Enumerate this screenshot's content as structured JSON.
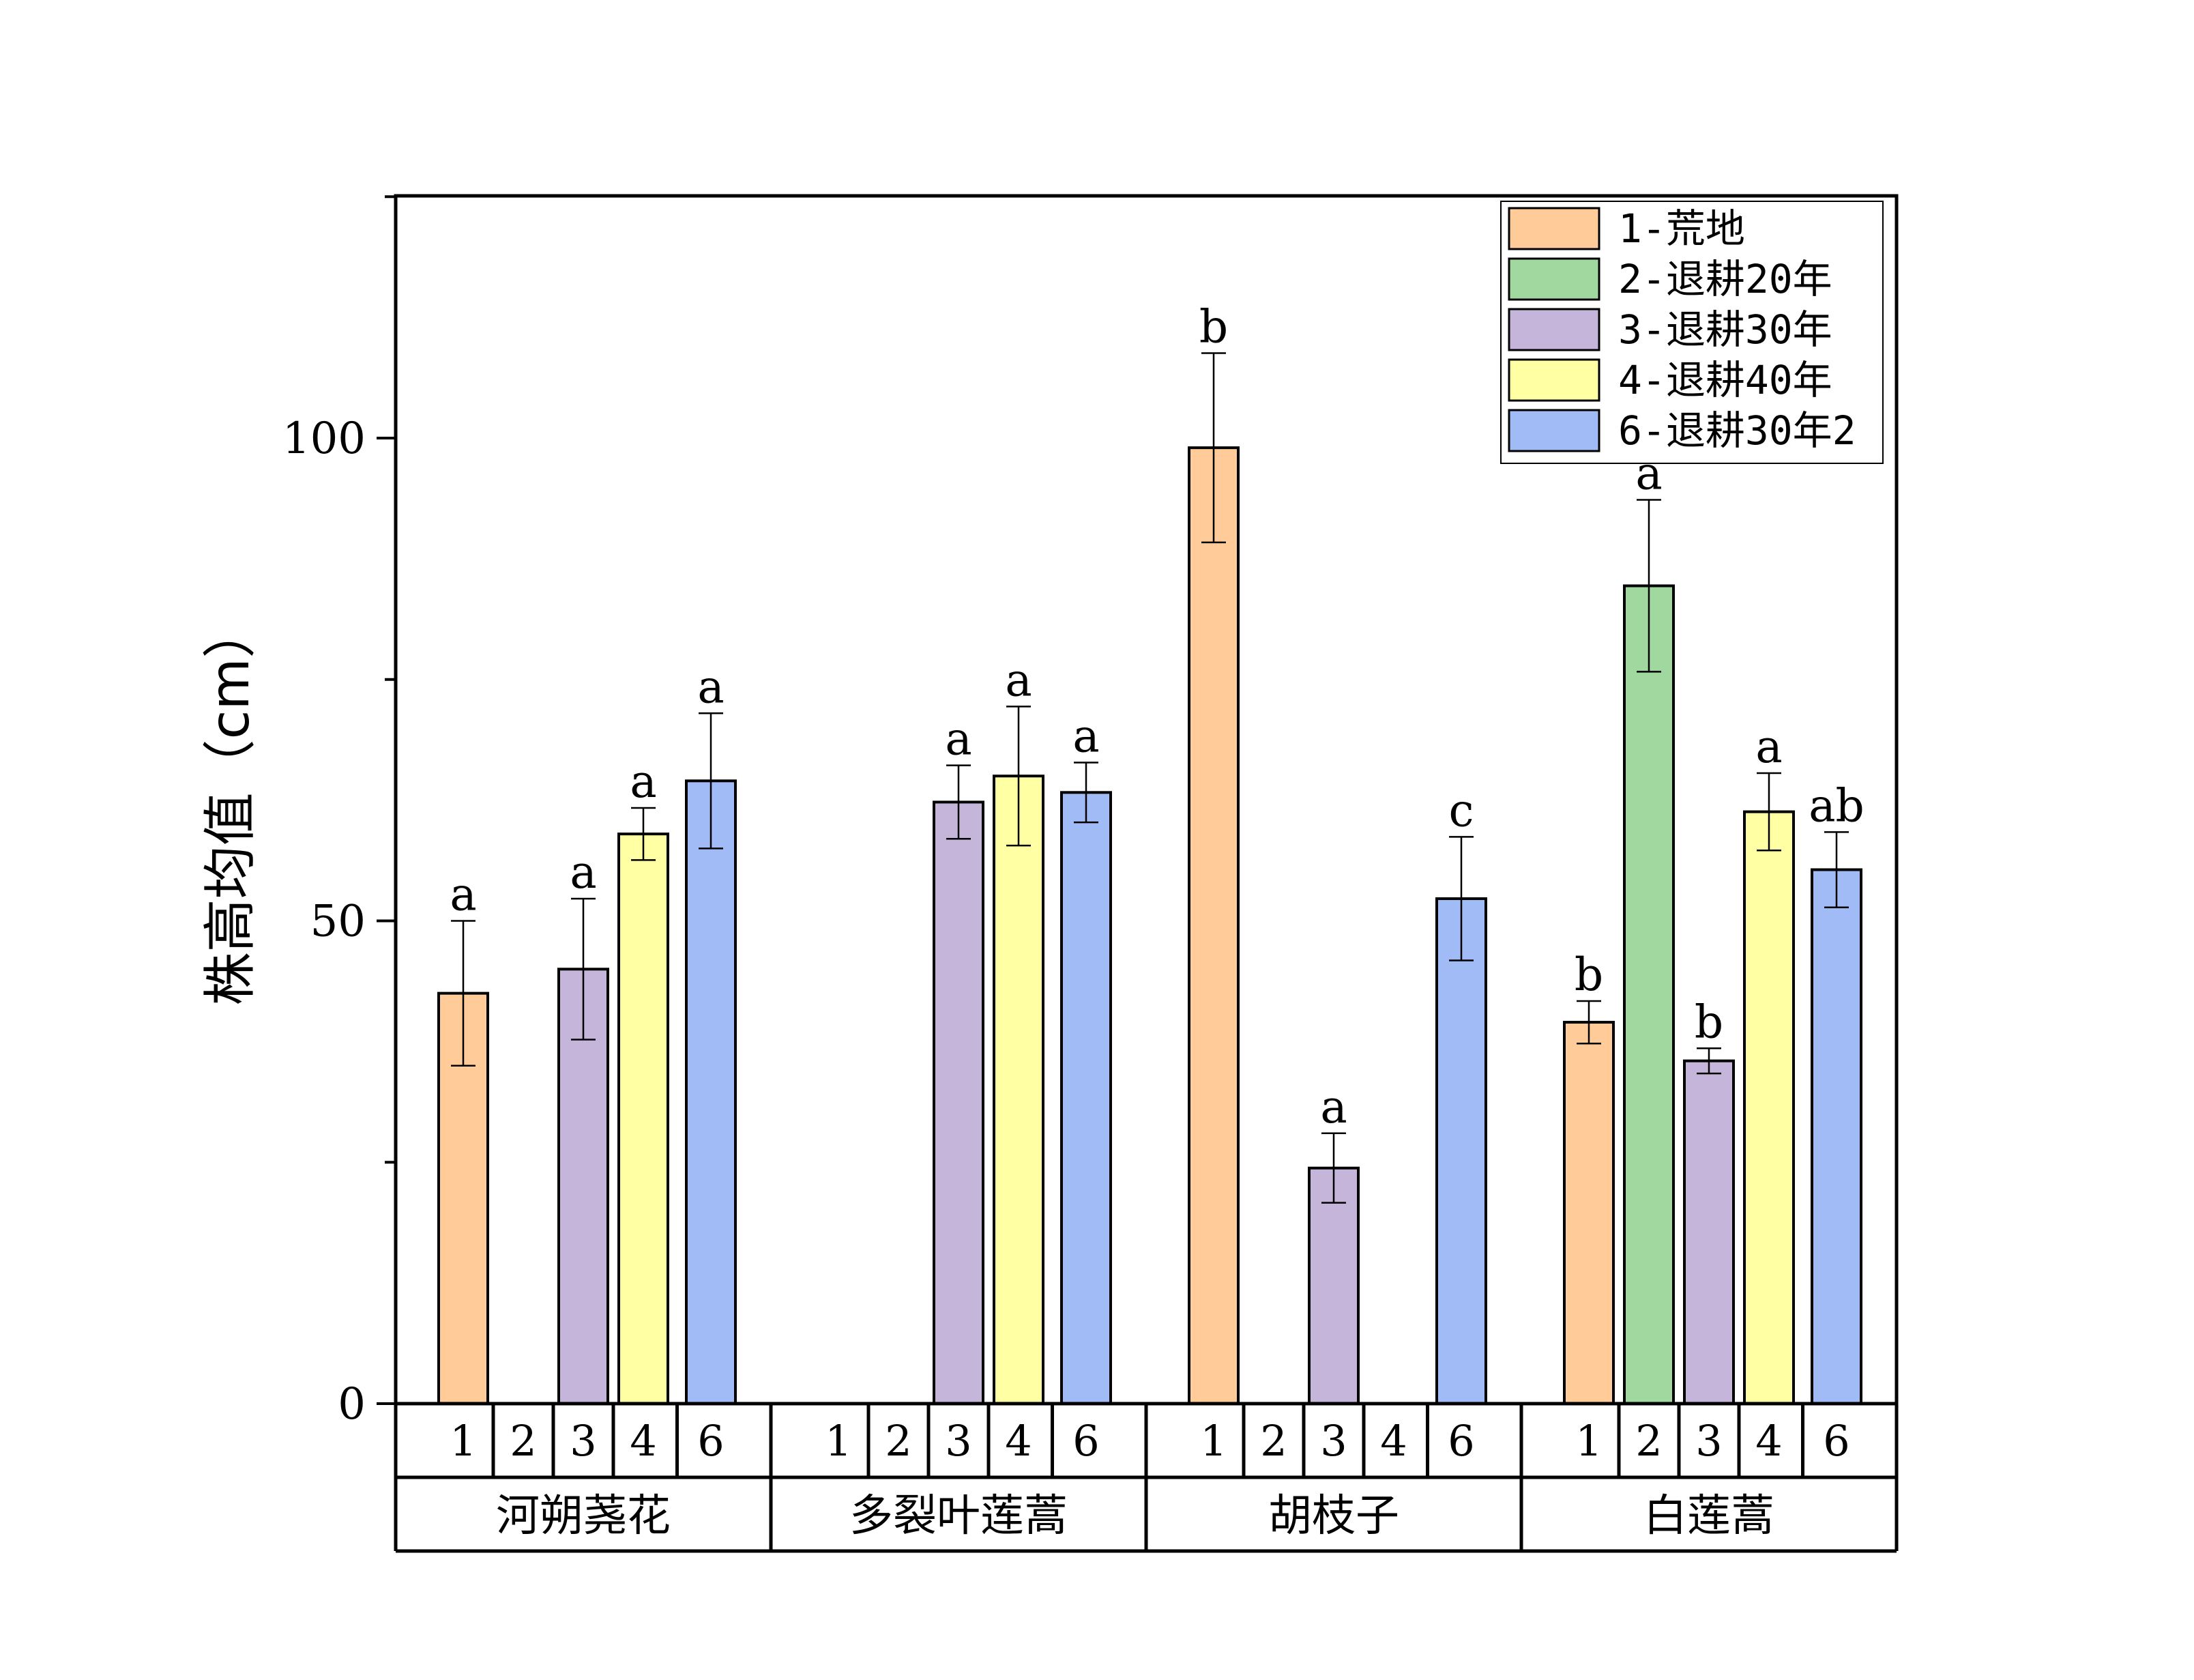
{
  "chart_data": {
    "type": "bar",
    "title": "",
    "ylabel": "株高均值（cm）",
    "xlabel": "",
    "ylim": [
      0,
      125
    ],
    "yticks": [
      0,
      50,
      100
    ],
    "grid": false,
    "legend_position": "top-right",
    "series": [
      {
        "code": "1",
        "name": "1-荒地",
        "color": "#FFCC99"
      },
      {
        "code": "2",
        "name": "2-退耕20年",
        "color": "#A0D8A0"
      },
      {
        "code": "3",
        "name": "3-退耕30年",
        "color": "#C6B5DB"
      },
      {
        "code": "4",
        "name": "4-退耕40年",
        "color": "#FFFFA3"
      },
      {
        "code": "6",
        "name": "6-退耕30年2",
        "color": "#A0BBF5"
      }
    ],
    "groups": [
      {
        "name": "河朔荛花",
        "codes": [
          "1",
          "2",
          "3",
          "4",
          "6"
        ],
        "values": [
          42.5,
          null,
          45,
          59,
          64.5
        ],
        "errors": [
          7.5,
          null,
          7.3,
          2.7,
          7
        ],
        "letters": [
          "a",
          "",
          "a",
          "a",
          "a"
        ]
      },
      {
        "name": "多裂叶莲蒿",
        "codes": [
          "1",
          "2",
          "3",
          "4",
          "6"
        ],
        "values": [
          null,
          null,
          62.3,
          65,
          63.3
        ],
        "errors": [
          null,
          null,
          3.8,
          7.2,
          3.1
        ],
        "letters": [
          "",
          "",
          "a",
          "a",
          "a"
        ]
      },
      {
        "name": "胡枝子",
        "codes": [
          "1",
          "2",
          "3",
          "4",
          "6"
        ],
        "values": [
          99,
          null,
          24.4,
          null,
          52.3
        ],
        "errors": [
          9.8,
          null,
          3.6,
          null,
          6.4
        ],
        "letters": [
          "b",
          "",
          "a",
          "",
          "c"
        ]
      },
      {
        "name": "白莲蒿",
        "codes": [
          "1",
          "2",
          "3",
          "4",
          "6"
        ],
        "values": [
          39.5,
          84.7,
          35.5,
          61.3,
          55.3
        ],
        "errors": [
          2.2,
          8.9,
          1.3,
          4,
          3.9
        ],
        "letters": [
          "b",
          "a",
          "b",
          "a",
          "ab"
        ]
      }
    ]
  }
}
